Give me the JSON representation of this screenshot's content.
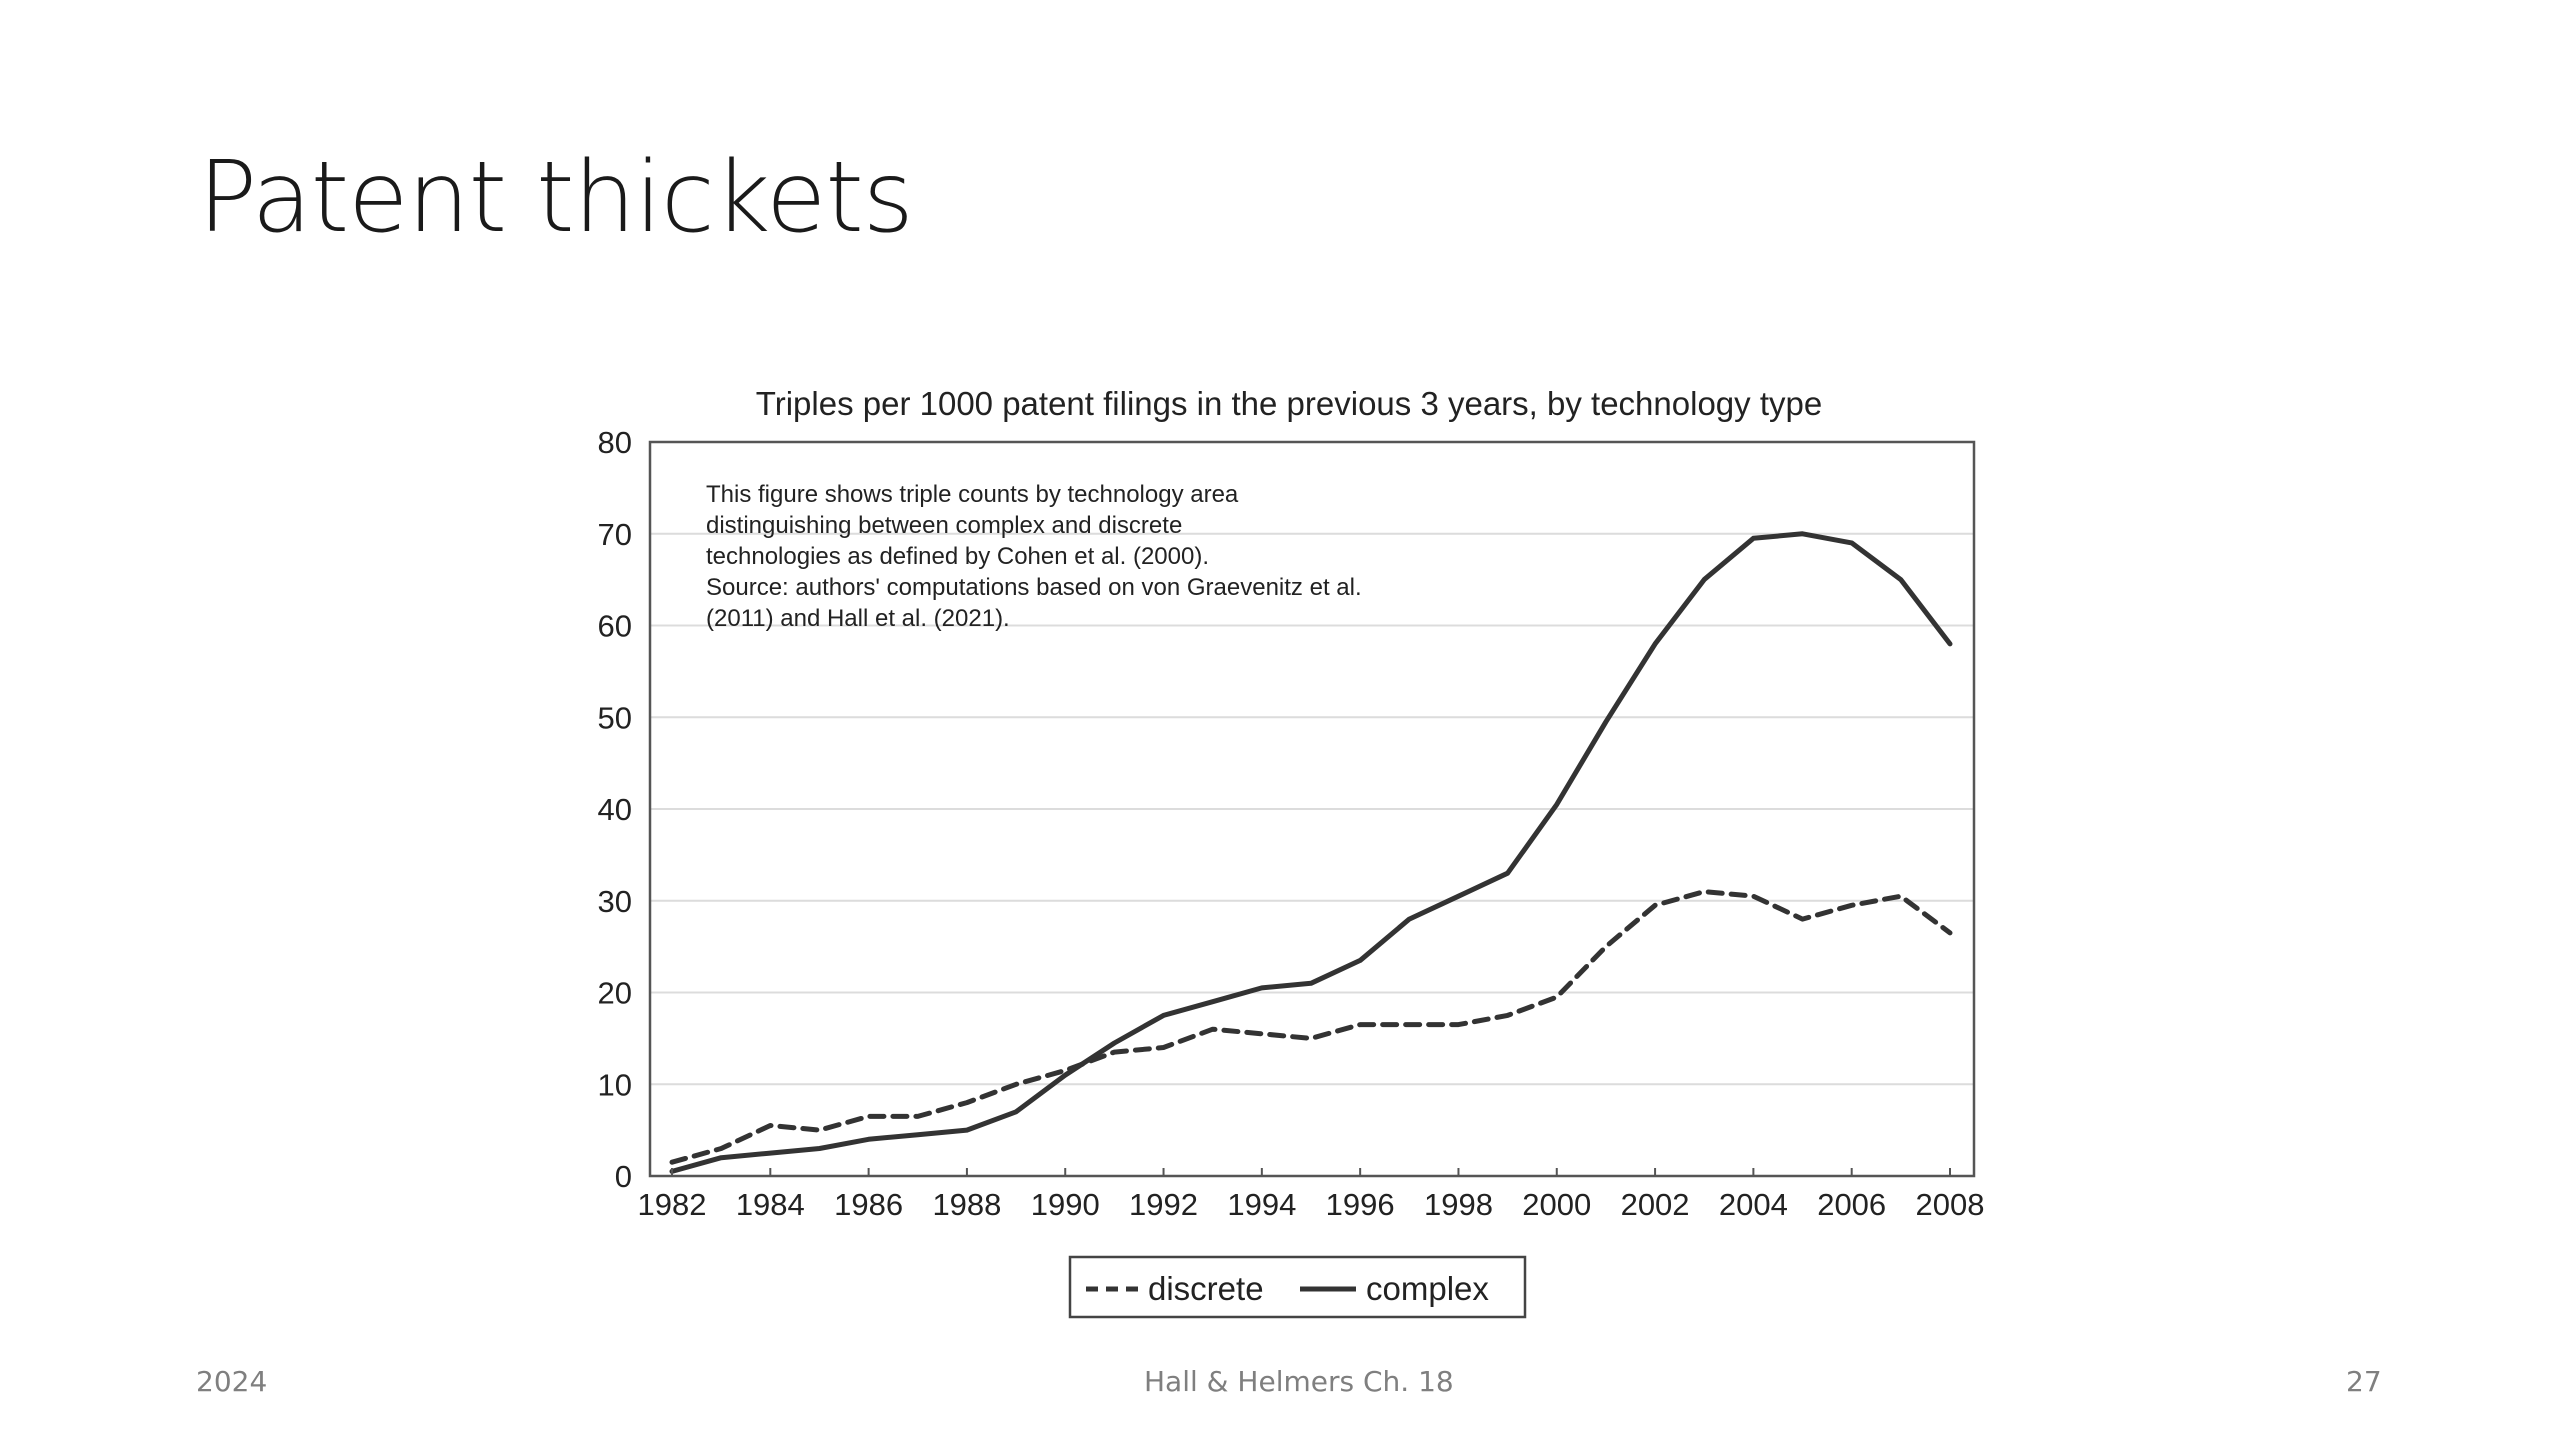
{
  "slide": {
    "title": "Patent thickets",
    "footer_left": "2024",
    "footer_center": "Hall & Helmers Ch. 18",
    "footer_right": "27"
  },
  "chart_data": {
    "type": "line",
    "title": "Triples per 1000 patent filings in the previous 3 years, by technology type",
    "xlabel": "",
    "ylabel": "",
    "ylim": [
      0,
      80
    ],
    "xlim": [
      1982,
      2008
    ],
    "yticks": [
      "0",
      "10",
      "20",
      "30",
      "40",
      "50",
      "60",
      "70",
      "80"
    ],
    "xticks": [
      "1982",
      "1984",
      "1986",
      "1988",
      "1990",
      "1992",
      "1994",
      "1996",
      "1998",
      "2000",
      "2002",
      "2004",
      "2006",
      "2008"
    ],
    "grid": "horizontal",
    "legend_position": "bottom",
    "annotation": [
      "This figure shows triple counts by technology area",
      "distinguishing between complex and discrete",
      "technologies as defined by Cohen et al. (2000).",
      "Source: authors' computations based on von Graevenitz et al.",
      "(2011) and Hall et al. (2021)."
    ],
    "x": [
      1982,
      1983,
      1984,
      1985,
      1986,
      1987,
      1988,
      1989,
      1990,
      1991,
      1992,
      1993,
      1994,
      1995,
      1996,
      1997,
      1998,
      1999,
      2000,
      2001,
      2002,
      2003,
      2004,
      2005,
      2006,
      2007,
      2008
    ],
    "series": [
      {
        "name": "discrete",
        "style": "dashed",
        "color": "#333333",
        "values": [
          1.5,
          3,
          5.5,
          5,
          6.5,
          6.5,
          8,
          10,
          11.5,
          13.5,
          14,
          16,
          15.5,
          15,
          16.5,
          16.5,
          16.5,
          17.5,
          19.5,
          25,
          29.5,
          31,
          30.5,
          28,
          29.5,
          30.5,
          26.5
        ]
      },
      {
        "name": "complex",
        "style": "solid",
        "color": "#333333",
        "values": [
          0.5,
          2,
          2.5,
          3,
          4,
          4.5,
          5,
          7,
          11,
          14.5,
          17.5,
          19,
          20.5,
          21,
          23.5,
          28,
          30.5,
          33,
          40.5,
          49.5,
          58,
          65,
          69.5,
          70,
          69,
          65,
          58
        ]
      }
    ]
  }
}
